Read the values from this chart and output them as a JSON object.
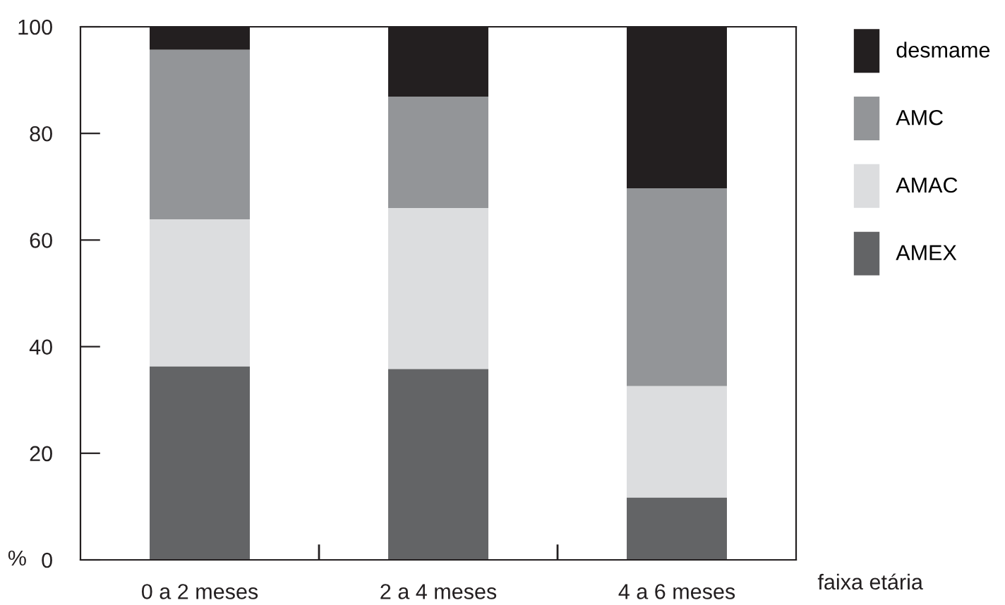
{
  "chart_data": {
    "type": "bar",
    "stacked": true,
    "categories": [
      "0 a 2 meses",
      "2 a 4 meses",
      "4 a 6 meses"
    ],
    "series": [
      {
        "name": "AMEX",
        "color": "#636466",
        "values": [
          36.3,
          35.8,
          11.7
        ]
      },
      {
        "name": "AMAC",
        "color": "#dcdddf",
        "values": [
          27.6,
          30.2,
          20.9
        ]
      },
      {
        "name": "AMC",
        "color": "#939598",
        "values": [
          31.8,
          20.9,
          37.1
        ]
      },
      {
        "name": "desmame",
        "color": "#231f20",
        "values": [
          4.3,
          13.1,
          30.3
        ]
      }
    ],
    "ylim": [
      0,
      100
    ],
    "yticks": [
      0,
      20,
      40,
      60,
      80,
      100
    ],
    "ylabel": "%",
    "xlabel": "faixa etária",
    "grid": false,
    "legend": "right"
  }
}
